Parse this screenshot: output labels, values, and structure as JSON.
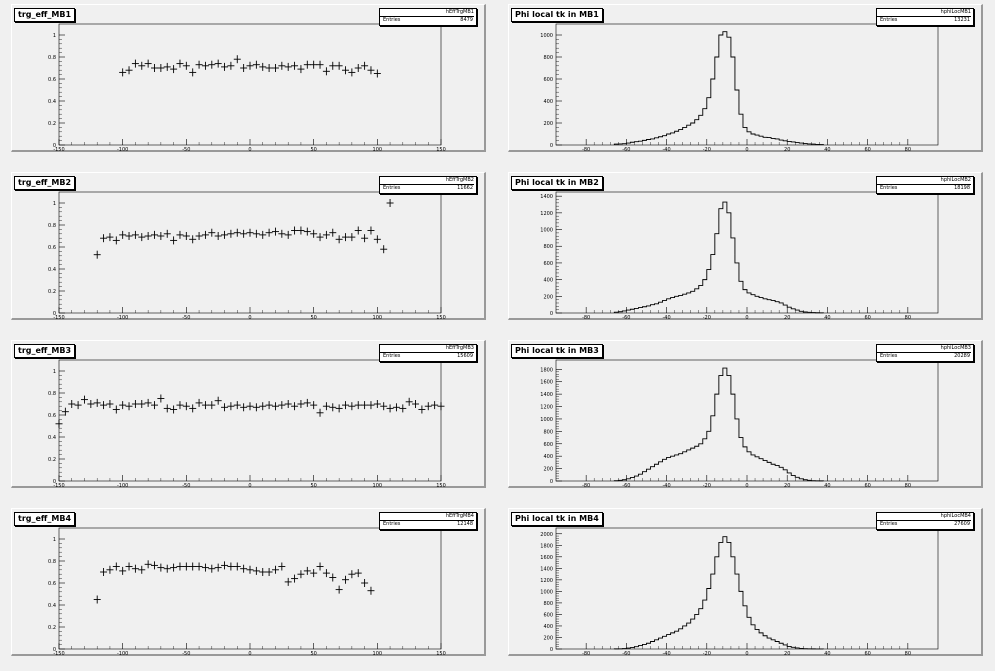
{
  "chart_data": [
    {
      "type": "scatter",
      "title": "trg_eff_MB1",
      "stats": {
        "name": "hEffTrgMB1",
        "entries_label": "Entries",
        "entries": "8479"
      },
      "xlim": [
        -150,
        150
      ],
      "ylim": [
        0,
        1.1
      ],
      "xticks": [
        -150,
        -100,
        -50,
        0,
        50,
        100,
        150
      ],
      "yticks": [
        0,
        0.2,
        0.4,
        0.6,
        0.8,
        1
      ],
      "x": [
        -100,
        -95,
        -90,
        -85,
        -80,
        -75,
        -70,
        -65,
        -60,
        -55,
        -50,
        -45,
        -40,
        -35,
        -30,
        -25,
        -20,
        -15,
        -10,
        -5,
        0,
        5,
        10,
        15,
        20,
        25,
        30,
        35,
        40,
        45,
        50,
        55,
        60,
        65,
        70,
        75,
        80,
        85,
        90,
        95,
        100
      ],
      "y": [
        0.66,
        0.68,
        0.74,
        0.72,
        0.74,
        0.7,
        0.7,
        0.71,
        0.69,
        0.74,
        0.72,
        0.66,
        0.73,
        0.72,
        0.73,
        0.74,
        0.71,
        0.72,
        0.78,
        0.7,
        0.72,
        0.73,
        0.71,
        0.7,
        0.7,
        0.72,
        0.71,
        0.72,
        0.69,
        0.73,
        0.73,
        0.73,
        0.67,
        0.72,
        0.72,
        0.68,
        0.66,
        0.7,
        0.72,
        0.68,
        0.65
      ]
    },
    {
      "type": "bar",
      "title": "Phi local tk in MB1",
      "stats": {
        "name": "hphiLocMB1",
        "entries_label": "Entries",
        "entries": "13231"
      },
      "xlim": [
        -95,
        95
      ],
      "ylim": [
        0,
        1100
      ],
      "xticks": [
        -80,
        -60,
        -40,
        -20,
        0,
        20,
        40,
        60,
        80
      ],
      "yticks": [
        0,
        200,
        400,
        600,
        800,
        1000
      ],
      "bin_width": 2,
      "x_start": -66,
      "values": [
        8,
        10,
        12,
        18,
        25,
        30,
        35,
        42,
        50,
        55,
        65,
        75,
        85,
        100,
        110,
        125,
        140,
        160,
        180,
        200,
        230,
        270,
        330,
        430,
        600,
        800,
        1000,
        1030,
        980,
        800,
        500,
        280,
        160,
        120,
        100,
        90,
        80,
        70,
        68,
        60,
        55,
        45,
        38,
        32,
        28,
        22,
        18,
        13,
        10,
        8,
        5,
        4
      ]
    },
    {
      "type": "scatter",
      "title": "trg_eff_MB2",
      "stats": {
        "name": "hEffTrgMB2",
        "entries_label": "Entries",
        "entries": "11662"
      },
      "xlim": [
        -150,
        150
      ],
      "ylim": [
        0,
        1.1
      ],
      "xticks": [
        -150,
        -100,
        -50,
        0,
        50,
        100,
        150
      ],
      "yticks": [
        0,
        0.2,
        0.4,
        0.6,
        0.8,
        1
      ],
      "x": [
        -120,
        -115,
        -110,
        -105,
        -100,
        -95,
        -90,
        -85,
        -80,
        -75,
        -70,
        -65,
        -60,
        -55,
        -50,
        -45,
        -40,
        -35,
        -30,
        -25,
        -20,
        -15,
        -10,
        -5,
        0,
        5,
        10,
        15,
        20,
        25,
        30,
        35,
        40,
        45,
        50,
        55,
        60,
        65,
        70,
        75,
        80,
        85,
        90,
        95,
        100,
        105,
        110,
        115,
        120
      ],
      "y": [
        0.53,
        0.68,
        0.69,
        0.66,
        0.71,
        0.7,
        0.71,
        0.69,
        0.7,
        0.71,
        0.7,
        0.72,
        0.66,
        0.71,
        0.7,
        0.67,
        0.7,
        0.71,
        0.73,
        0.7,
        0.71,
        0.72,
        0.73,
        0.72,
        0.73,
        0.72,
        0.71,
        0.73,
        0.74,
        0.72,
        0.71,
        0.75,
        0.75,
        0.74,
        0.72,
        0.69,
        0.71,
        0.73,
        0.67,
        0.69,
        0.69,
        0.75,
        0.68,
        0.75,
        0.67,
        0.58,
        1.0,
        0.0,
        0.0
      ],
      "note_points": 47
    },
    {
      "type": "bar",
      "title": "Phi local tk in MB2",
      "stats": {
        "name": "hphiLocMB2",
        "entries_label": "Entries",
        "entries": "18198"
      },
      "xlim": [
        -95,
        95
      ],
      "ylim": [
        0,
        1450
      ],
      "xticks": [
        -80,
        -60,
        -40,
        -20,
        0,
        20,
        40,
        60,
        80
      ],
      "yticks": [
        0,
        200,
        400,
        600,
        800,
        1000,
        1200,
        1400
      ],
      "bin_width": 2,
      "x_start": -66,
      "values": [
        10,
        15,
        25,
        35,
        45,
        55,
        65,
        75,
        85,
        100,
        110,
        130,
        150,
        170,
        185,
        200,
        210,
        225,
        240,
        260,
        290,
        330,
        400,
        520,
        700,
        950,
        1250,
        1330,
        1200,
        900,
        600,
        380,
        280,
        240,
        220,
        200,
        185,
        170,
        160,
        150,
        135,
        120,
        95,
        70,
        50,
        35,
        20,
        12,
        8,
        5,
        3,
        2
      ]
    },
    {
      "type": "scatter",
      "title": "trg_eff_MB3",
      "stats": {
        "name": "hEffTrgMB3",
        "entries_label": "Entries",
        "entries": "15609"
      },
      "xlim": [
        -150,
        150
      ],
      "ylim": [
        0,
        1.1
      ],
      "xticks": [
        -150,
        -100,
        -50,
        0,
        50,
        100,
        150
      ],
      "yticks": [
        0,
        0.2,
        0.4,
        0.6,
        0.8,
        1
      ],
      "x": [
        -150,
        -145,
        -140,
        -135,
        -130,
        -125,
        -120,
        -115,
        -110,
        -105,
        -100,
        -95,
        -90,
        -85,
        -80,
        -75,
        -70,
        -65,
        -60,
        -55,
        -50,
        -45,
        -40,
        -35,
        -30,
        -25,
        -20,
        -15,
        -10,
        -5,
        0,
        5,
        10,
        15,
        20,
        25,
        30,
        35,
        40,
        45,
        50,
        55,
        60,
        65,
        70,
        75,
        80,
        85,
        90,
        95,
        100,
        105,
        110,
        115,
        120,
        125,
        130,
        135,
        140,
        145,
        150
      ],
      "y": [
        0.52,
        0.63,
        0.7,
        0.69,
        0.74,
        0.7,
        0.71,
        0.69,
        0.7,
        0.65,
        0.69,
        0.68,
        0.7,
        0.7,
        0.71,
        0.69,
        0.75,
        0.66,
        0.65,
        0.69,
        0.68,
        0.66,
        0.71,
        0.69,
        0.69,
        0.73,
        0.67,
        0.68,
        0.69,
        0.67,
        0.68,
        0.67,
        0.68,
        0.69,
        0.68,
        0.69,
        0.7,
        0.68,
        0.7,
        0.71,
        0.69,
        0.62,
        0.68,
        0.67,
        0.66,
        0.69,
        0.68,
        0.69,
        0.69,
        0.69,
        0.7,
        0.68,
        0.66,
        0.67,
        0.66,
        0.72,
        0.7,
        0.65,
        0.68,
        0.69,
        0.68
      ]
    },
    {
      "type": "bar",
      "title": "Phi local tk in MB3",
      "stats": {
        "name": "hphiLocMB3",
        "entries_label": "Entries",
        "entries": "20289"
      },
      "xlim": [
        -95,
        95
      ],
      "ylim": [
        0,
        1950
      ],
      "xticks": [
        -80,
        -60,
        -40,
        -20,
        0,
        20,
        40,
        60,
        80
      ],
      "yticks": [
        0,
        200,
        400,
        600,
        800,
        1000,
        1200,
        1400,
        1600,
        1800
      ],
      "bin_width": 2,
      "x_start": -66,
      "values": [
        5,
        10,
        20,
        35,
        55,
        80,
        110,
        150,
        190,
        230,
        270,
        310,
        350,
        380,
        400,
        420,
        440,
        470,
        500,
        530,
        560,
        600,
        680,
        800,
        1050,
        1400,
        1700,
        1820,
        1700,
        1400,
        1000,
        700,
        550,
        470,
        420,
        390,
        360,
        330,
        300,
        270,
        250,
        220,
        180,
        130,
        90,
        60,
        35,
        20,
        10,
        5,
        3,
        2
      ]
    },
    {
      "type": "scatter",
      "title": "trg_eff_MB4",
      "stats": {
        "name": "hEffTrgMB4",
        "entries_label": "Entries",
        "entries": "12148"
      },
      "xlim": [
        -150,
        150
      ],
      "ylim": [
        0,
        1.1
      ],
      "xticks": [
        -150,
        -100,
        -50,
        0,
        50,
        100,
        150
      ],
      "yticks": [
        0,
        0.2,
        0.4,
        0.6,
        0.8,
        1
      ],
      "x": [
        -120,
        -115,
        -110,
        -105,
        -100,
        -95,
        -90,
        -85,
        -80,
        -75,
        -70,
        -65,
        -60,
        -55,
        -50,
        -45,
        -40,
        -35,
        -30,
        -25,
        -20,
        -15,
        -10,
        -5,
        0,
        5,
        10,
        15,
        20,
        25,
        30,
        35,
        40,
        45,
        50,
        55,
        60,
        65,
        70,
        75,
        80,
        85,
        90,
        95,
        100,
        105,
        110,
        115,
        120
      ],
      "y": [
        0.45,
        0.7,
        0.72,
        0.75,
        0.71,
        0.75,
        0.73,
        0.72,
        0.77,
        0.76,
        0.74,
        0.73,
        0.74,
        0.75,
        0.75,
        0.75,
        0.75,
        0.74,
        0.73,
        0.74,
        0.76,
        0.75,
        0.75,
        0.73,
        0.72,
        0.71,
        0.7,
        0.7,
        0.72,
        0.75,
        0.61,
        0.64,
        0.68,
        0.71,
        0.69,
        0.75,
        0.69,
        0.65,
        0.54,
        0.63,
        0.68,
        0.69,
        0.6,
        0.53,
        0.0,
        0.0,
        0.0,
        0.0,
        0.0
      ],
      "note_points": 44
    },
    {
      "type": "bar",
      "title": "Phi local tk in MB4",
      "stats": {
        "name": "hphiLocMB4",
        "entries_label": "Entries",
        "entries": "27609"
      },
      "xlim": [
        -95,
        95
      ],
      "ylim": [
        0,
        2100
      ],
      "xticks": [
        -80,
        -60,
        -40,
        -20,
        0,
        20,
        40,
        60,
        80
      ],
      "yticks": [
        0,
        200,
        400,
        600,
        800,
        1000,
        1200,
        1400,
        1600,
        1800,
        2000
      ],
      "bin_width": 2,
      "x_start": -66,
      "values": [
        2,
        4,
        8,
        15,
        25,
        40,
        60,
        80,
        100,
        130,
        160,
        190,
        220,
        250,
        280,
        310,
        350,
        400,
        450,
        520,
        600,
        700,
        850,
        1050,
        1300,
        1600,
        1850,
        1950,
        1850,
        1600,
        1300,
        1000,
        750,
        550,
        420,
        340,
        280,
        230,
        190,
        160,
        130,
        100,
        70,
        45,
        30,
        18,
        10,
        6,
        3,
        2,
        1,
        1
      ]
    }
  ]
}
